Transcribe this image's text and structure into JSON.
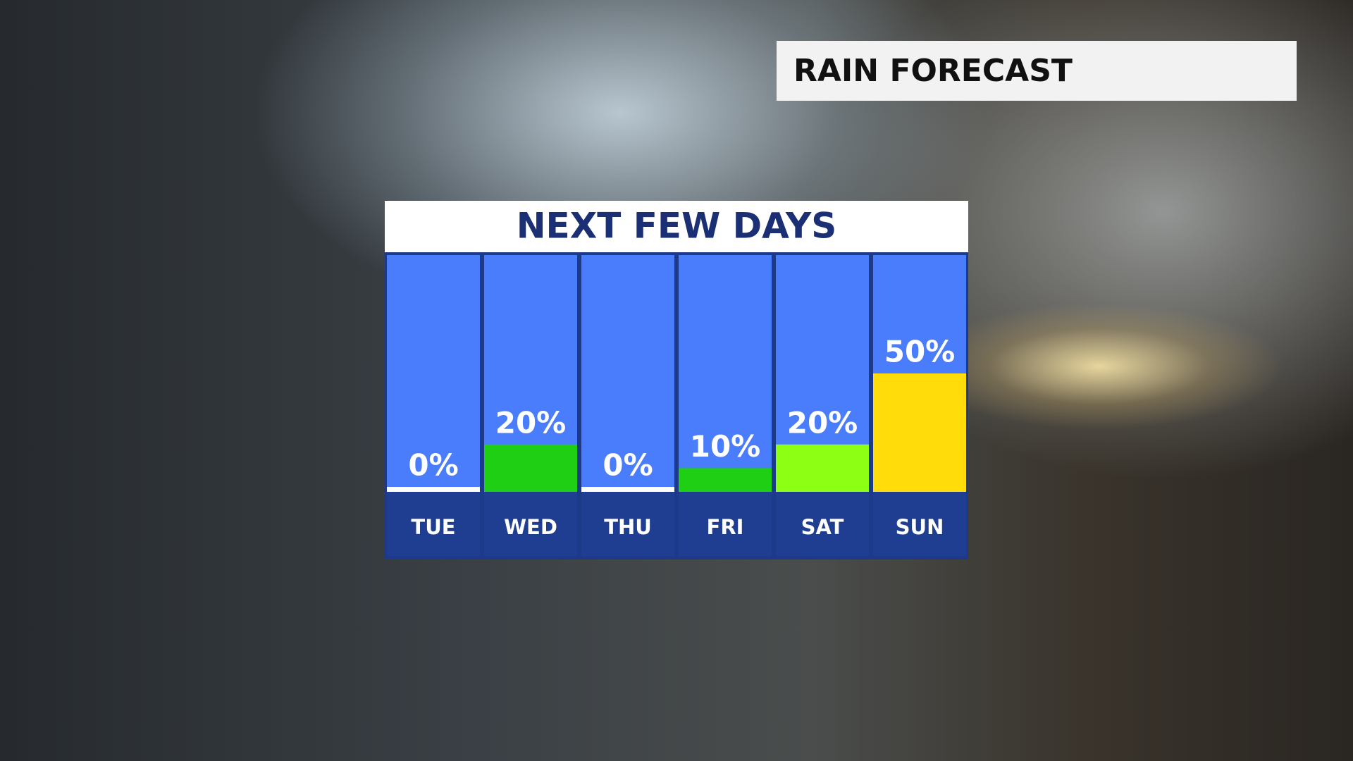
{
  "banner": {
    "title": "RAIN FORECAST"
  },
  "chart_data": {
    "type": "bar",
    "title": "NEXT FEW DAYS",
    "categories": [
      "TUE",
      "WED",
      "THU",
      "FRI",
      "SAT",
      "SUN"
    ],
    "values": [
      0,
      20,
      0,
      10,
      20,
      50
    ],
    "value_labels": [
      "0%",
      "20%",
      "0%",
      "10%",
      "20%",
      "50%"
    ],
    "colors": [
      "#ffffff",
      "#1fcf14",
      "#ffffff",
      "#1fcf14",
      "#8cff14",
      "#ffdc0a"
    ],
    "ylim": [
      0,
      100
    ]
  }
}
